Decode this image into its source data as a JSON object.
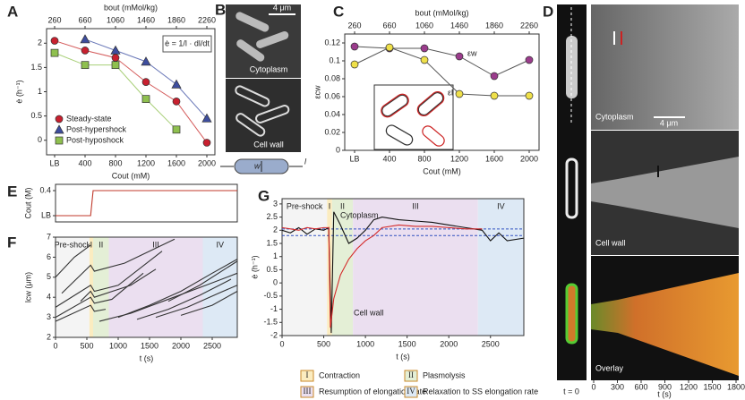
{
  "panels": [
    "A",
    "B",
    "C",
    "D",
    "E",
    "F",
    "G"
  ],
  "chart_data": [
    {
      "type": "line",
      "title": "A",
      "categories": [
        "LB",
        "400",
        "800",
        "1200",
        "1600",
        "2000"
      ],
      "xlabel": "Cout (mM)",
      "x2label": "bout (mMol/kg)",
      "x2ticks": [
        260,
        660,
        1060,
        1460,
        1860,
        2260
      ],
      "ylabel": "ė (h⁻¹)",
      "ylim": [
        -0.3,
        2.3
      ],
      "yticks": [
        0,
        0.5,
        1,
        1.5,
        2
      ],
      "legend": "lower left",
      "annotation": "ė = 1/l · dl/dt",
      "series": [
        {
          "name": "Steady-state",
          "color": "#c8202f",
          "line_color": "#d45a5a",
          "marker": "circle",
          "values": [
            2.05,
            1.85,
            1.7,
            1.2,
            0.8,
            -0.05
          ]
        },
        {
          "name": "Post-hypershock",
          "color": "#3d4d9e",
          "line_color": "#6a78b8",
          "marker": "triangle",
          "values": [
            null,
            2.08,
            1.85,
            1.62,
            1.15,
            0.45
          ]
        },
        {
          "name": "Post-hyposhock",
          "color": "#8fc04f",
          "line_color": "#a8cf78",
          "marker": "square",
          "values": [
            1.8,
            1.55,
            1.55,
            0.85,
            0.22,
            null
          ]
        }
      ]
    },
    {
      "type": "line",
      "title": "C",
      "categories": [
        "LB",
        "400",
        "800",
        "1200",
        "1600",
        "2000"
      ],
      "xlabel": "Cout (mM)",
      "x2label": "bout (mMol/kg)",
      "x2ticks": [
        260,
        660,
        1060,
        1460,
        1860,
        2260
      ],
      "ylabel": "εcw",
      "ylim": [
        0,
        0.13
      ],
      "yticks": [
        0,
        0.02,
        0.04,
        0.06,
        0.08,
        0.1,
        0.12
      ],
      "legend": "inline",
      "series": [
        {
          "name": "εw",
          "color": "#9b3c8c",
          "line_color": "#555",
          "marker": "circle",
          "values": [
            0.116,
            0.114,
            0.114,
            0.105,
            0.083,
            0.101
          ]
        },
        {
          "name": "εl",
          "color": "#efe04a",
          "line_color": "#555",
          "marker": "circle",
          "values": [
            0.096,
            0.115,
            0.101,
            0.063,
            0.061,
            0.061
          ]
        }
      ]
    },
    {
      "type": "line",
      "title": "E",
      "ylabel": "Cout (M)",
      "xlim": [
        0,
        2900
      ],
      "ylim": [
        -0.1,
        0.5
      ],
      "yticks": [
        {
          "value": 0,
          "label": "LB"
        },
        0.4
      ],
      "color": "#c0392b",
      "series": [
        {
          "x": [
            0,
            560,
            600,
            2900
          ],
          "values": [
            0,
            0,
            0.4,
            0.4
          ]
        }
      ]
    },
    {
      "type": "line",
      "title": "F",
      "xlabel": "t (s)",
      "ylabel": "lcw (μm)",
      "xlim": [
        0,
        2900
      ],
      "ylim": [
        2,
        7
      ],
      "xticks": [
        0,
        500,
        1000,
        1500,
        2000,
        2500
      ],
      "yticks": [
        2,
        3,
        4,
        5,
        6,
        7
      ],
      "color": "#333",
      "phases": [
        {
          "label": "Pre-shock",
          "start": 0,
          "end": 540,
          "color": "#f4f4f4"
        },
        {
          "label": "I",
          "start": 540,
          "end": 600,
          "color": "#fbecc0"
        },
        {
          "label": "II",
          "start": 600,
          "end": 850,
          "color": "#e4efd6"
        },
        {
          "label": "III",
          "start": 850,
          "end": 2350,
          "color": "#ebdff0"
        },
        {
          "label": "IV",
          "start": 2350,
          "end": 2900,
          "color": "#dde9f5"
        }
      ],
      "series": [
        {
          "x": [
            0,
            560,
            620,
            900,
            1400
          ],
          "values": [
            3.0,
            4.0,
            3.7,
            3.9,
            5.2
          ]
        },
        {
          "x": [
            0,
            560,
            620,
            1000,
            1700
          ],
          "values": [
            3.5,
            4.6,
            4.3,
            4.6,
            6.3
          ]
        },
        {
          "x": [
            100,
            560,
            620,
            1100,
            1900
          ],
          "values": [
            4.2,
            5.6,
            5.3,
            5.7,
            6.9
          ]
        },
        {
          "x": [
            0,
            300,
            560
          ],
          "values": [
            5.0,
            6.0,
            6.6
          ]
        },
        {
          "x": [
            0,
            560,
            620,
            800
          ],
          "values": [
            2.8,
            3.6,
            3.3,
            3.4
          ]
        },
        {
          "x": [
            400,
            560,
            620,
            1200,
            1600
          ],
          "values": [
            3.8,
            4.3,
            4.0,
            4.6,
            5.4
          ]
        },
        {
          "x": [
            700,
            1200,
            1800,
            2400,
            2900
          ],
          "values": [
            2.8,
            3.2,
            3.9,
            4.6,
            5.2
          ]
        },
        {
          "x": [
            1000,
            1500,
            2000,
            2500,
            2900
          ],
          "values": [
            3.0,
            3.6,
            4.3,
            5.2,
            5.9
          ]
        },
        {
          "x": [
            1300,
            1800,
            2300,
            2800
          ],
          "values": [
            2.9,
            3.4,
            4.1,
            4.9
          ]
        },
        {
          "x": [
            1600,
            2100,
            2600,
            2900
          ],
          "values": [
            3.0,
            3.5,
            4.2,
            4.6
          ]
        },
        {
          "x": [
            1800,
            2300,
            2900
          ],
          "values": [
            3.8,
            4.6,
            5.8
          ]
        },
        {
          "x": [
            2000,
            2500,
            2900
          ],
          "values": [
            3.1,
            3.6,
            4.3
          ]
        }
      ]
    },
    {
      "type": "line",
      "title": "G",
      "xlabel": "t (s)",
      "ylabel": "ė (h⁻¹)",
      "xlim": [
        0,
        2900
      ],
      "ylim": [
        -2,
        3.2
      ],
      "xticks": [
        0,
        500,
        1000,
        1500,
        2000,
        2500
      ],
      "yticks": [
        -2,
        -1.5,
        -1,
        -0.5,
        0,
        0.5,
        1,
        1.5,
        2,
        2.5,
        3
      ],
      "legend": "inline",
      "reference_lines": [
        2.05,
        1.8
      ],
      "phases": [
        {
          "label": "Pre-shock",
          "start": 0,
          "end": 540,
          "color": "#f4f4f4"
        },
        {
          "label": "I",
          "start": 540,
          "end": 600,
          "color": "#fbecc0"
        },
        {
          "label": "II",
          "start": 600,
          "end": 850,
          "color": "#e4efd6"
        },
        {
          "label": "III",
          "start": 850,
          "end": 2350,
          "color": "#ebdff0"
        },
        {
          "label": "IV",
          "start": 2350,
          "end": 2900,
          "color": "#dde9f5"
        }
      ],
      "series": [
        {
          "name": "Cytoplasm",
          "color": "#111",
          "x": [
            0,
            100,
            200,
            300,
            400,
            500,
            560,
            590,
            620,
            700,
            800,
            900,
            1000,
            1100,
            1200,
            1400,
            1600,
            1800,
            2000,
            2200,
            2400,
            2500,
            2600,
            2700,
            2900
          ],
          "values": [
            2.0,
            1.9,
            2.1,
            1.85,
            2.05,
            2.0,
            2.1,
            -1.9,
            2.7,
            2.2,
            1.5,
            1.7,
            2.0,
            2.4,
            2.5,
            2.4,
            2.35,
            2.3,
            2.2,
            2.1,
            2.0,
            1.6,
            1.9,
            1.6,
            1.7
          ]
        },
        {
          "name": "Cell wall",
          "color": "#d42a2a",
          "x": [
            0,
            100,
            200,
            300,
            400,
            500,
            560,
            580,
            620,
            700,
            800,
            900,
            1000,
            1100,
            1200,
            1400,
            1600,
            1800,
            2000,
            2200,
            2400
          ],
          "values": [
            2.1,
            2.05,
            2.0,
            2.1,
            2.05,
            2.1,
            2.1,
            -1.7,
            -0.6,
            0.3,
            0.9,
            1.3,
            1.6,
            1.8,
            2.1,
            2.2,
            2.15,
            2.15,
            2.1,
            2.05,
            2.05
          ]
        }
      ]
    }
  ],
  "images": {
    "B": {
      "scale_bar": "4 μm",
      "labels": [
        "Cytoplasm",
        "Cell wall"
      ],
      "schematic": [
        "w",
        "l"
      ]
    },
    "D": {
      "labels": [
        "Cytoplasm",
        "Cell wall",
        "Overlay"
      ],
      "scale_bar": "4 μm",
      "t0_label": "t = 0",
      "xlabel": "t (s)",
      "xlim": [
        0,
        1800
      ],
      "xticks": [
        0,
        300,
        600,
        900,
        1200,
        1500,
        1800
      ]
    }
  },
  "phase_legend": [
    {
      "numeral": "I",
      "text": "Contraction",
      "color": "#fbecc0"
    },
    {
      "numeral": "II",
      "text": "Plasmolysis",
      "color": "#e4efd6"
    },
    {
      "numeral": "III",
      "text": "Resumption of elongation rate",
      "color": "#ebdff0"
    },
    {
      "numeral": "IV",
      "text": "Relaxation to SS elongation rate",
      "color": "#dde9f5"
    }
  ]
}
